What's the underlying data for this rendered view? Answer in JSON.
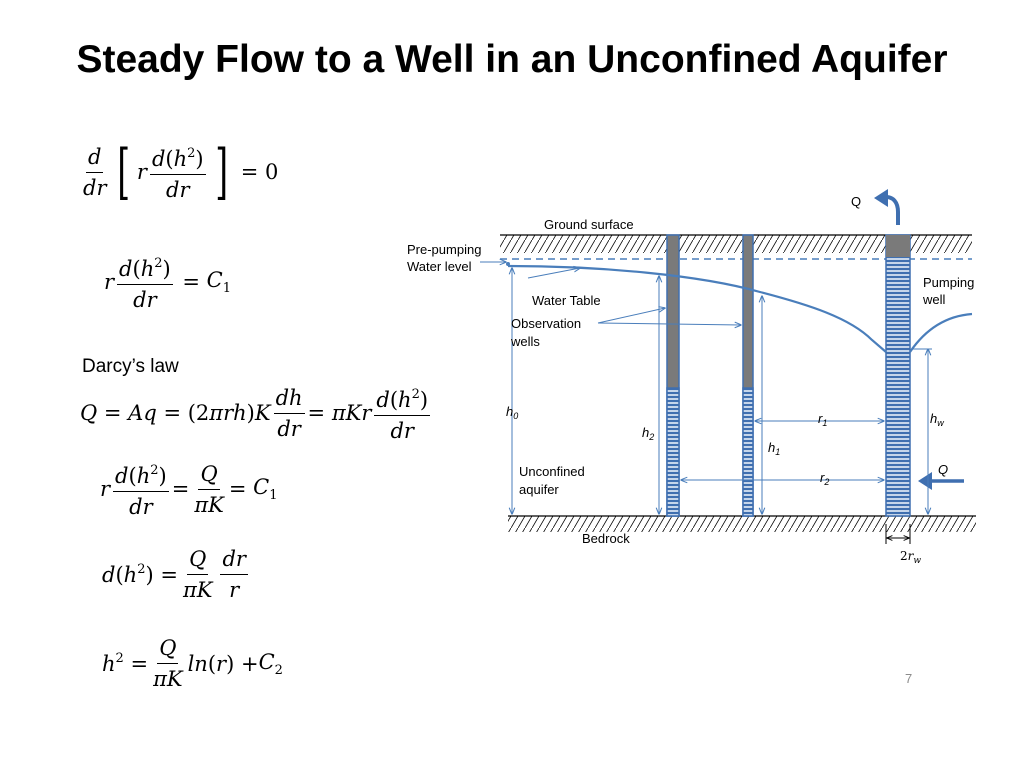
{
  "slide": {
    "title": "Steady Flow to a Well in an Unconfined Aquifer",
    "page_number": "7"
  },
  "equations": {
    "darcy_label": "Darcy’s law"
  },
  "diagram": {
    "labels": {
      "q_top": "Q",
      "ground_surface": "Ground surface",
      "pre_pumping_1": "Pre-pumping",
      "pre_pumping_2": "Water level",
      "water_table": "Water Table",
      "observation_wells_1": "Observation",
      "observation_wells_2": "wells",
      "pumping_well_1": "Pumping",
      "pumping_well_2": "well",
      "h0": "h",
      "h0_sub": "0",
      "h2": "h",
      "h2_sub": "2",
      "h1": "h",
      "h1_sub": "1",
      "r1": "r",
      "r1_sub": "1",
      "r2": "r",
      "r2_sub": "2",
      "hw": "h",
      "hw_sub": "w",
      "q_side": "Q",
      "unconfined_1": "Unconfined",
      "unconfined_2": "aquifer",
      "bedrock": "Bedrock",
      "rw_prefix": "2",
      "rw": "r",
      "rw_sub": "w"
    },
    "colors": {
      "water_line": "#4a7ebb",
      "well_fill": "#7a7a7a",
      "screen": "#3f6fb0"
    }
  }
}
